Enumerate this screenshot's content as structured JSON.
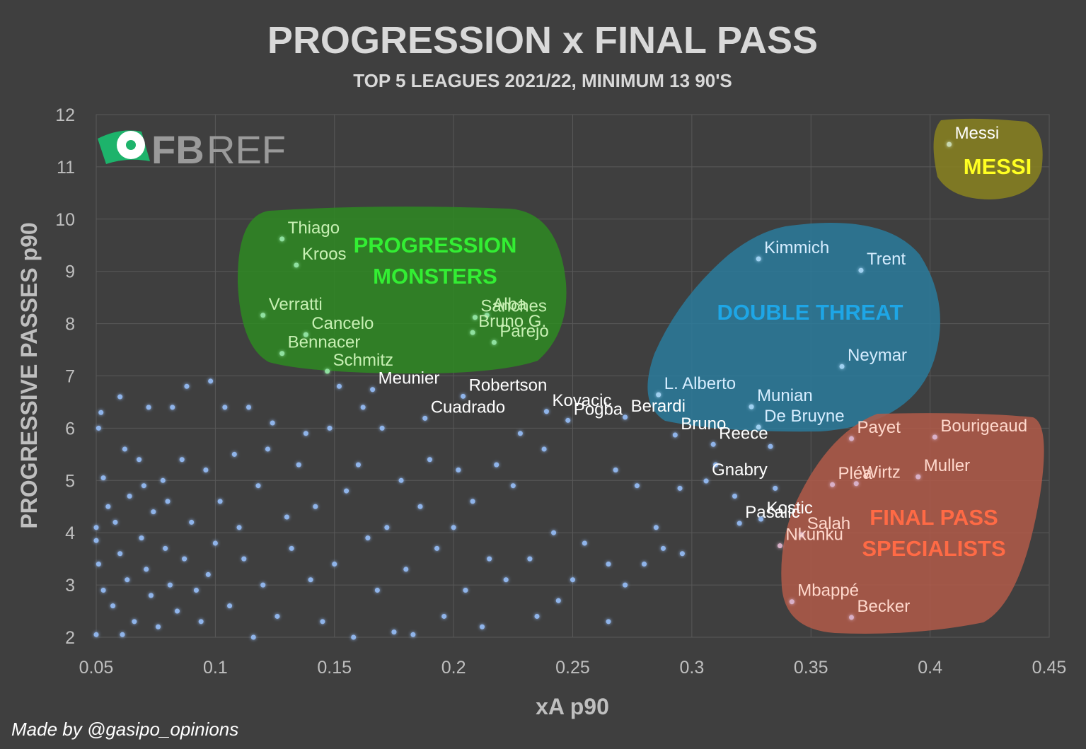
{
  "chart_data": {
    "type": "scatter",
    "title": "PROGRESSION x FINAL PASS",
    "subtitle": "TOP 5 LEAGUES 2021/22, MINIMUM 13 90'S",
    "x_label": "xA p90",
    "y_label": "PROGRESSIVE PASSES p90",
    "credit": "Made by @gasipo_opinions",
    "logo_text": [
      "FB",
      "REF"
    ],
    "xlim": [
      0.05,
      0.45
    ],
    "xticks": [
      0.05,
      0.1,
      0.15,
      0.2,
      0.25,
      0.3,
      0.35,
      0.4,
      0.45
    ],
    "ylim": [
      2,
      12
    ],
    "yticks": [
      2,
      3,
      4,
      5,
      6,
      7,
      8,
      9,
      10,
      11,
      12
    ],
    "grid": true,
    "regions": [
      {
        "label": "PROGRESSION MONSTERS",
        "color": "#2e8a22",
        "label_color": "#33ee33"
      },
      {
        "label": "DOUBLE THREAT",
        "color": "#2a7b9c",
        "label_color": "#1ea6e6"
      },
      {
        "label": "FINAL PASS SPECIALISTS",
        "color": "#b25a49",
        "label_color": "#ff6a45"
      },
      {
        "label": "MESSI",
        "color": "#8a8320",
        "label_color": "#ffff22"
      }
    ],
    "series": [
      {
        "color": "#8fb4ea",
        "label_color": "#ffffff",
        "x": [
          0.052,
          0.051,
          0.053,
          0.055,
          0.05,
          0.05,
          0.051,
          0.053,
          0.05,
          0.057,
          0.06,
          0.062,
          0.064,
          0.058,
          0.06,
          0.063,
          0.066,
          0.061,
          0.068,
          0.07,
          0.072,
          0.074,
          0.069,
          0.071,
          0.073,
          0.076,
          0.078,
          0.08,
          0.082,
          0.079,
          0.081,
          0.084,
          0.086,
          0.088,
          0.09,
          0.087,
          0.092,
          0.094,
          0.096,
          0.098,
          0.1,
          0.102,
          0.097,
          0.104,
          0.106,
          0.108,
          0.11,
          0.112,
          0.114,
          0.116,
          0.118,
          0.12,
          0.122,
          0.124,
          0.126,
          0.13,
          0.132,
          0.135,
          0.138,
          0.14,
          0.142,
          0.145,
          0.148,
          0.15,
          0.152,
          0.155,
          0.158,
          0.16,
          0.162,
          0.164,
          0.168,
          0.17,
          0.172,
          0.175,
          0.178,
          0.18,
          0.183,
          0.186,
          0.19,
          0.193,
          0.196,
          0.2,
          0.202,
          0.205,
          0.208,
          0.212,
          0.215,
          0.218,
          0.222,
          0.225,
          0.228,
          0.232,
          0.235,
          0.238,
          0.242,
          0.244,
          0.25,
          0.255,
          0.265,
          0.268,
          0.272,
          0.277,
          0.28,
          0.285,
          0.288,
          0.295,
          0.296,
          0.31,
          0.318,
          0.333,
          0.335,
          0.265
        ],
        "y": [
          6.3,
          6.0,
          5.05,
          4.5,
          4.1,
          3.85,
          3.4,
          2.9,
          2.05,
          2.6,
          6.6,
          5.6,
          4.7,
          4.2,
          3.6,
          3.1,
          2.3,
          2.05,
          5.4,
          4.9,
          6.4,
          4.4,
          3.9,
          3.3,
          2.8,
          2.2,
          5.0,
          4.6,
          6.4,
          3.7,
          3.0,
          2.5,
          5.4,
          6.8,
          4.2,
          3.5,
          2.9,
          2.3,
          5.2,
          6.9,
          3.8,
          4.6,
          3.2,
          6.4,
          2.6,
          5.5,
          4.1,
          3.5,
          6.4,
          2.0,
          4.9,
          3.0,
          5.6,
          6.1,
          2.4,
          4.3,
          3.7,
          5.3,
          5.9,
          3.1,
          4.5,
          2.3,
          6.0,
          3.4,
          6.8,
          4.8,
          2.0,
          5.3,
          6.4,
          3.9,
          2.9,
          6.0,
          4.1,
          2.1,
          5.0,
          3.3,
          2.05,
          4.5,
          5.4,
          3.7,
          2.4,
          4.1,
          5.2,
          2.9,
          4.6,
          2.2,
          3.5,
          5.3,
          3.1,
          4.9,
          5.9,
          3.5,
          2.4,
          5.6,
          4.0,
          2.7,
          3.1,
          3.8,
          2.3,
          5.2,
          3.0,
          4.9,
          3.4,
          4.1,
          3.7,
          4.85,
          3.6,
          5.3,
          4.7,
          5.65,
          4.85,
          3.4
        ]
      },
      {
        "color": "#8fb4ea",
        "label_color": "#ffffff",
        "x": [
          0.166,
          0.204,
          0.188,
          0.239,
          0.248,
          0.272,
          0.293,
          0.309,
          0.306,
          0.32,
          0.329
        ],
        "y": [
          6.74,
          6.61,
          6.19,
          6.32,
          6.15,
          6.21,
          5.87,
          5.69,
          4.99,
          4.18,
          4.26
        ],
        "labels": [
          "Meunier",
          "Robertson",
          "Cuadrado",
          "Kovacic",
          "Pogba",
          "Berardi",
          "Bruno",
          "Reece",
          "Gnabry",
          "Pasalic",
          "Kostic"
        ]
      },
      {
        "color": "#8fe0a0",
        "label_color": "#c8f0b4",
        "x": [
          0.128,
          0.134,
          0.12,
          0.138,
          0.128,
          0.147,
          0.209,
          0.214,
          0.208,
          0.217
        ],
        "y": [
          9.62,
          9.12,
          8.16,
          7.79,
          7.43,
          7.09,
          8.12,
          8.16,
          7.83,
          7.64
        ],
        "labels": [
          "Thiago",
          "Kroos",
          "Verratti",
          "Cancelo",
          "Bennacer",
          "Schmitz",
          "Sanches",
          "Alba",
          "Bruno G.",
          "Parejo"
        ]
      },
      {
        "color": "#9fd0f0",
        "label_color": "#d6edff",
        "x": [
          0.328,
          0.371,
          0.363,
          0.286,
          0.325,
          0.328
        ],
        "y": [
          9.24,
          9.02,
          7.18,
          6.64,
          6.41,
          6.02
        ],
        "labels": [
          "Kimmich",
          "Trent",
          "Neymar",
          "L. Alberto",
          "Munian",
          "De Bruyne"
        ]
      },
      {
        "color": "#d8b0c8",
        "label_color": "#ffd8cc",
        "x": [
          0.367,
          0.402,
          0.359,
          0.369,
          0.395,
          0.346,
          0.337,
          0.342,
          0.367
        ],
        "y": [
          5.8,
          5.83,
          4.92,
          4.94,
          5.07,
          3.96,
          3.75,
          2.68,
          2.38
        ],
        "labels": [
          "Payet",
          "Bourigeaud",
          "Pléa",
          "Wirtz",
          "Muller",
          "Salah",
          "Nkunku",
          "Mbappé",
          "Becker"
        ]
      },
      {
        "color": "#c8d8b0",
        "label_color": "#ffffff",
        "x": [
          0.408
        ],
        "y": [
          11.43
        ],
        "labels": [
          "Messi"
        ]
      }
    ]
  }
}
